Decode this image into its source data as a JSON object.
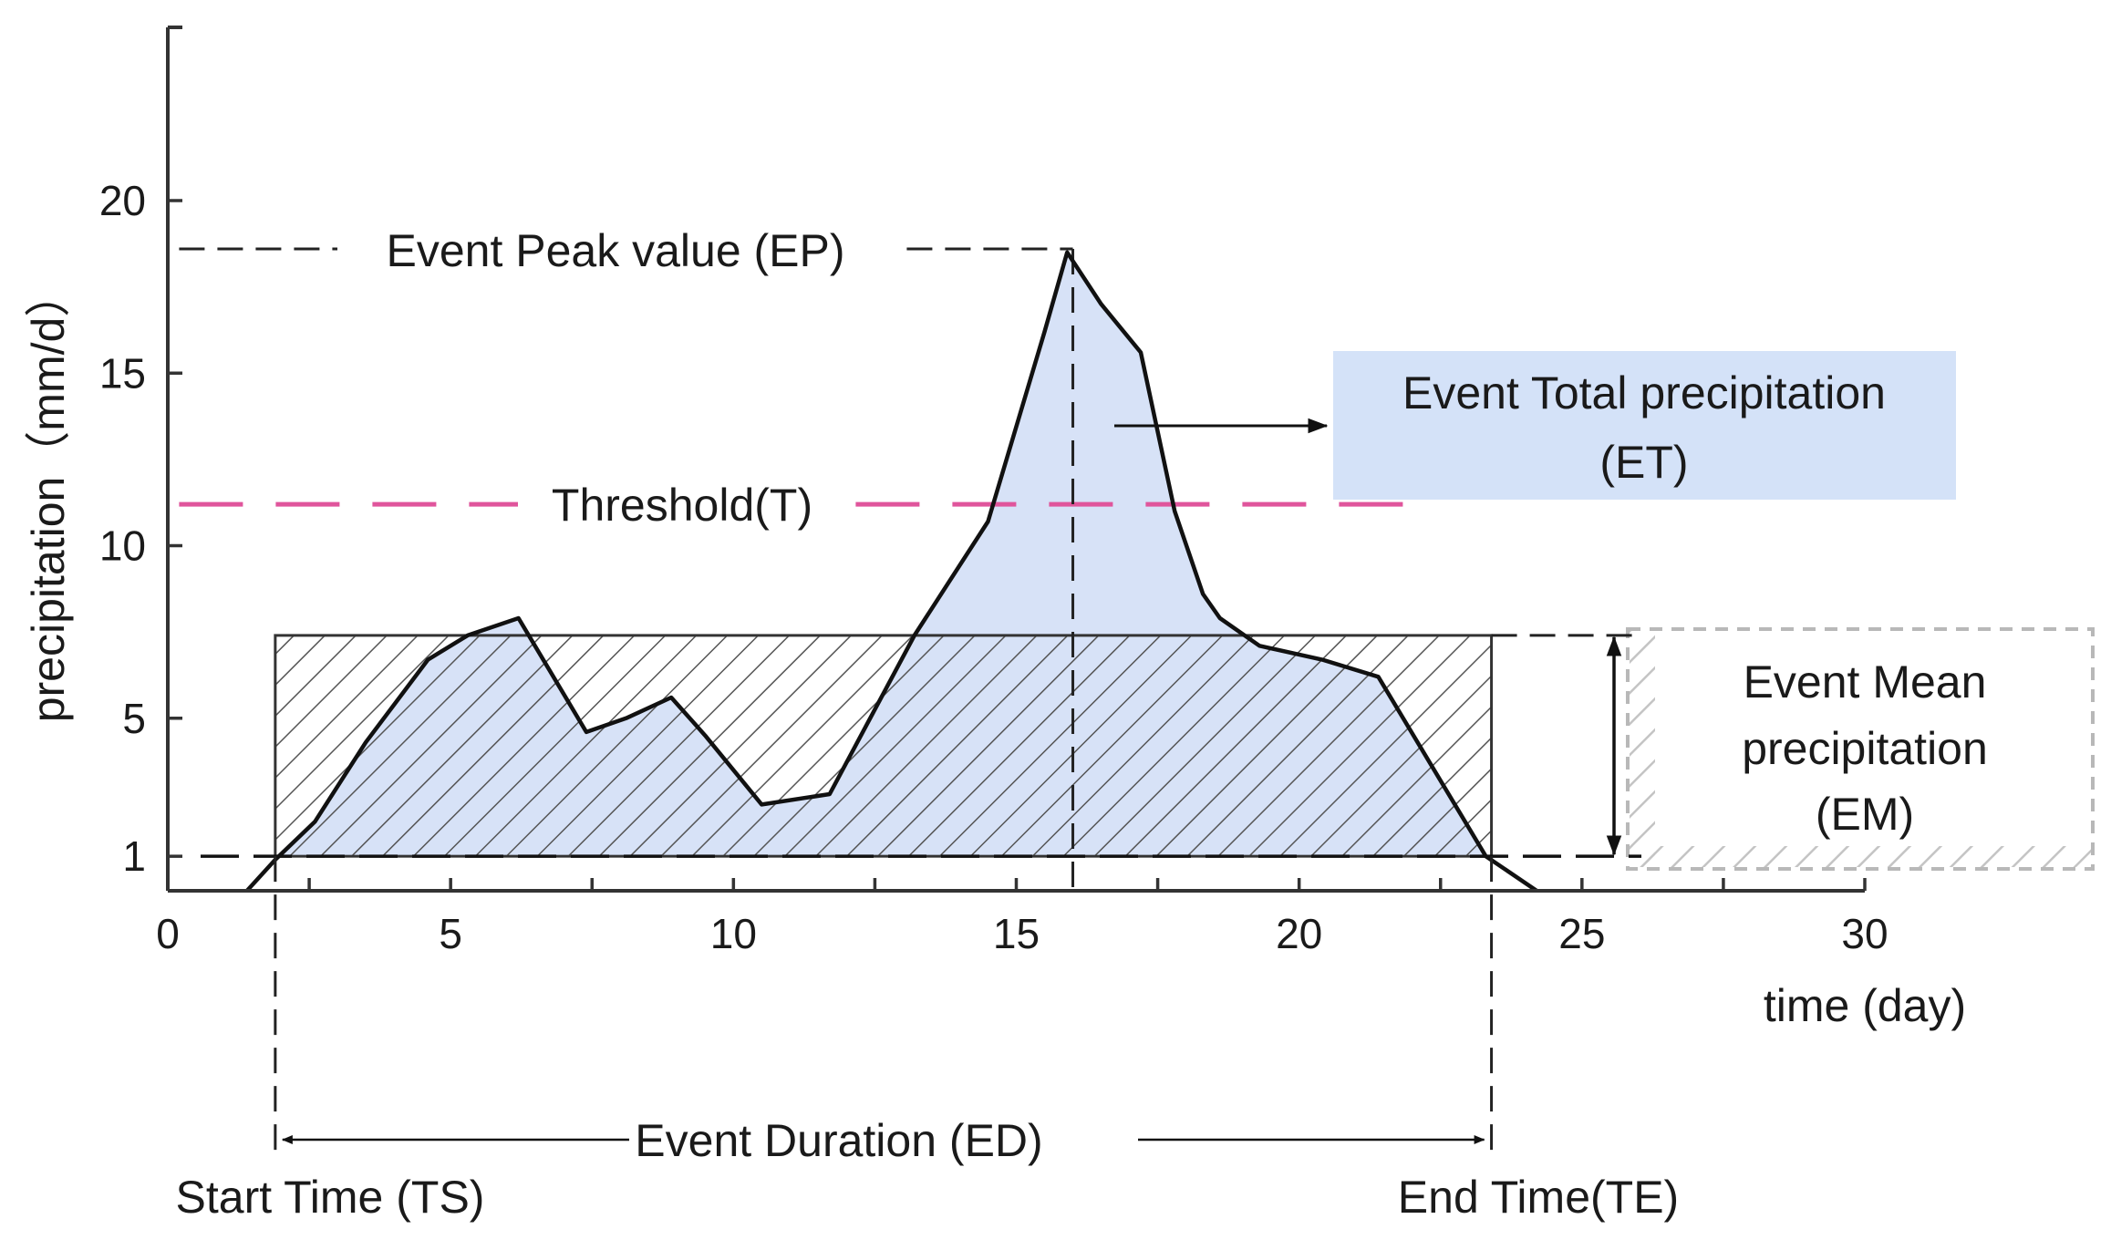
{
  "chart_data": {
    "type": "area",
    "title": "",
    "xlabel": "time (day)",
    "ylabel": "precipitation（mm/d）",
    "xlim": [
      0,
      30
    ],
    "ylim": [
      0,
      25
    ],
    "x_ticks": [
      0,
      5,
      10,
      15,
      20,
      25,
      30
    ],
    "x_minor_ticks": [
      2.5,
      7.5,
      12.5,
      17.5,
      22.5,
      27.5
    ],
    "y_ticks": [
      1,
      5,
      10,
      15,
      20
    ],
    "grid": false,
    "series": [
      {
        "name": "precipitation",
        "x": [
          1.4,
          1.9,
          2.6,
          3.5,
          4.6,
          5.3,
          6.2,
          7.4,
          8.1,
          8.9,
          9.5,
          10.5,
          11.7,
          13.2,
          14.5,
          15.5,
          15.9,
          16.5,
          17.2,
          17.8,
          18.3,
          18.6,
          19.3,
          20.4,
          21.4,
          23.3,
          24.2
        ],
        "y": [
          0,
          0.9,
          2,
          4.3,
          6.7,
          7.4,
          7.9,
          4.6,
          5,
          5.6,
          4.5,
          2.5,
          2.8,
          7.4,
          10.7,
          16.2,
          18.5,
          17,
          15.6,
          11,
          8.6,
          7.9,
          7.1,
          6.7,
          6.2,
          1,
          0
        ]
      }
    ],
    "threshold": {
      "label": "Threshold(T)",
      "value": 11.2,
      "x_end": 22
    },
    "base_level": 1,
    "event_mean": {
      "value": 7.4,
      "x_start": 1.9,
      "x_end": 23.4
    },
    "event_peak": {
      "value": 18.6,
      "x": 16.0
    },
    "event_start": 1.9,
    "event_end": 23.4,
    "annotations": {
      "peak": "Event Peak value (EP)",
      "total_line1": "Event Total precipitation",
      "total_line2": "(ET)",
      "mean_line1": "Event Mean",
      "mean_line2": "precipitation",
      "mean_line3": "(EM)",
      "duration": "Event Duration (ED)",
      "start": "Start Time (TS)",
      "end": "End Time(TE)"
    },
    "colors": {
      "fill": "#d7e2f7",
      "et_box": "#d4e2f8",
      "threshold": "#e0559c",
      "line": "#111111",
      "hatch": "#555555",
      "hatch_light": "#bdbdbd"
    }
  }
}
